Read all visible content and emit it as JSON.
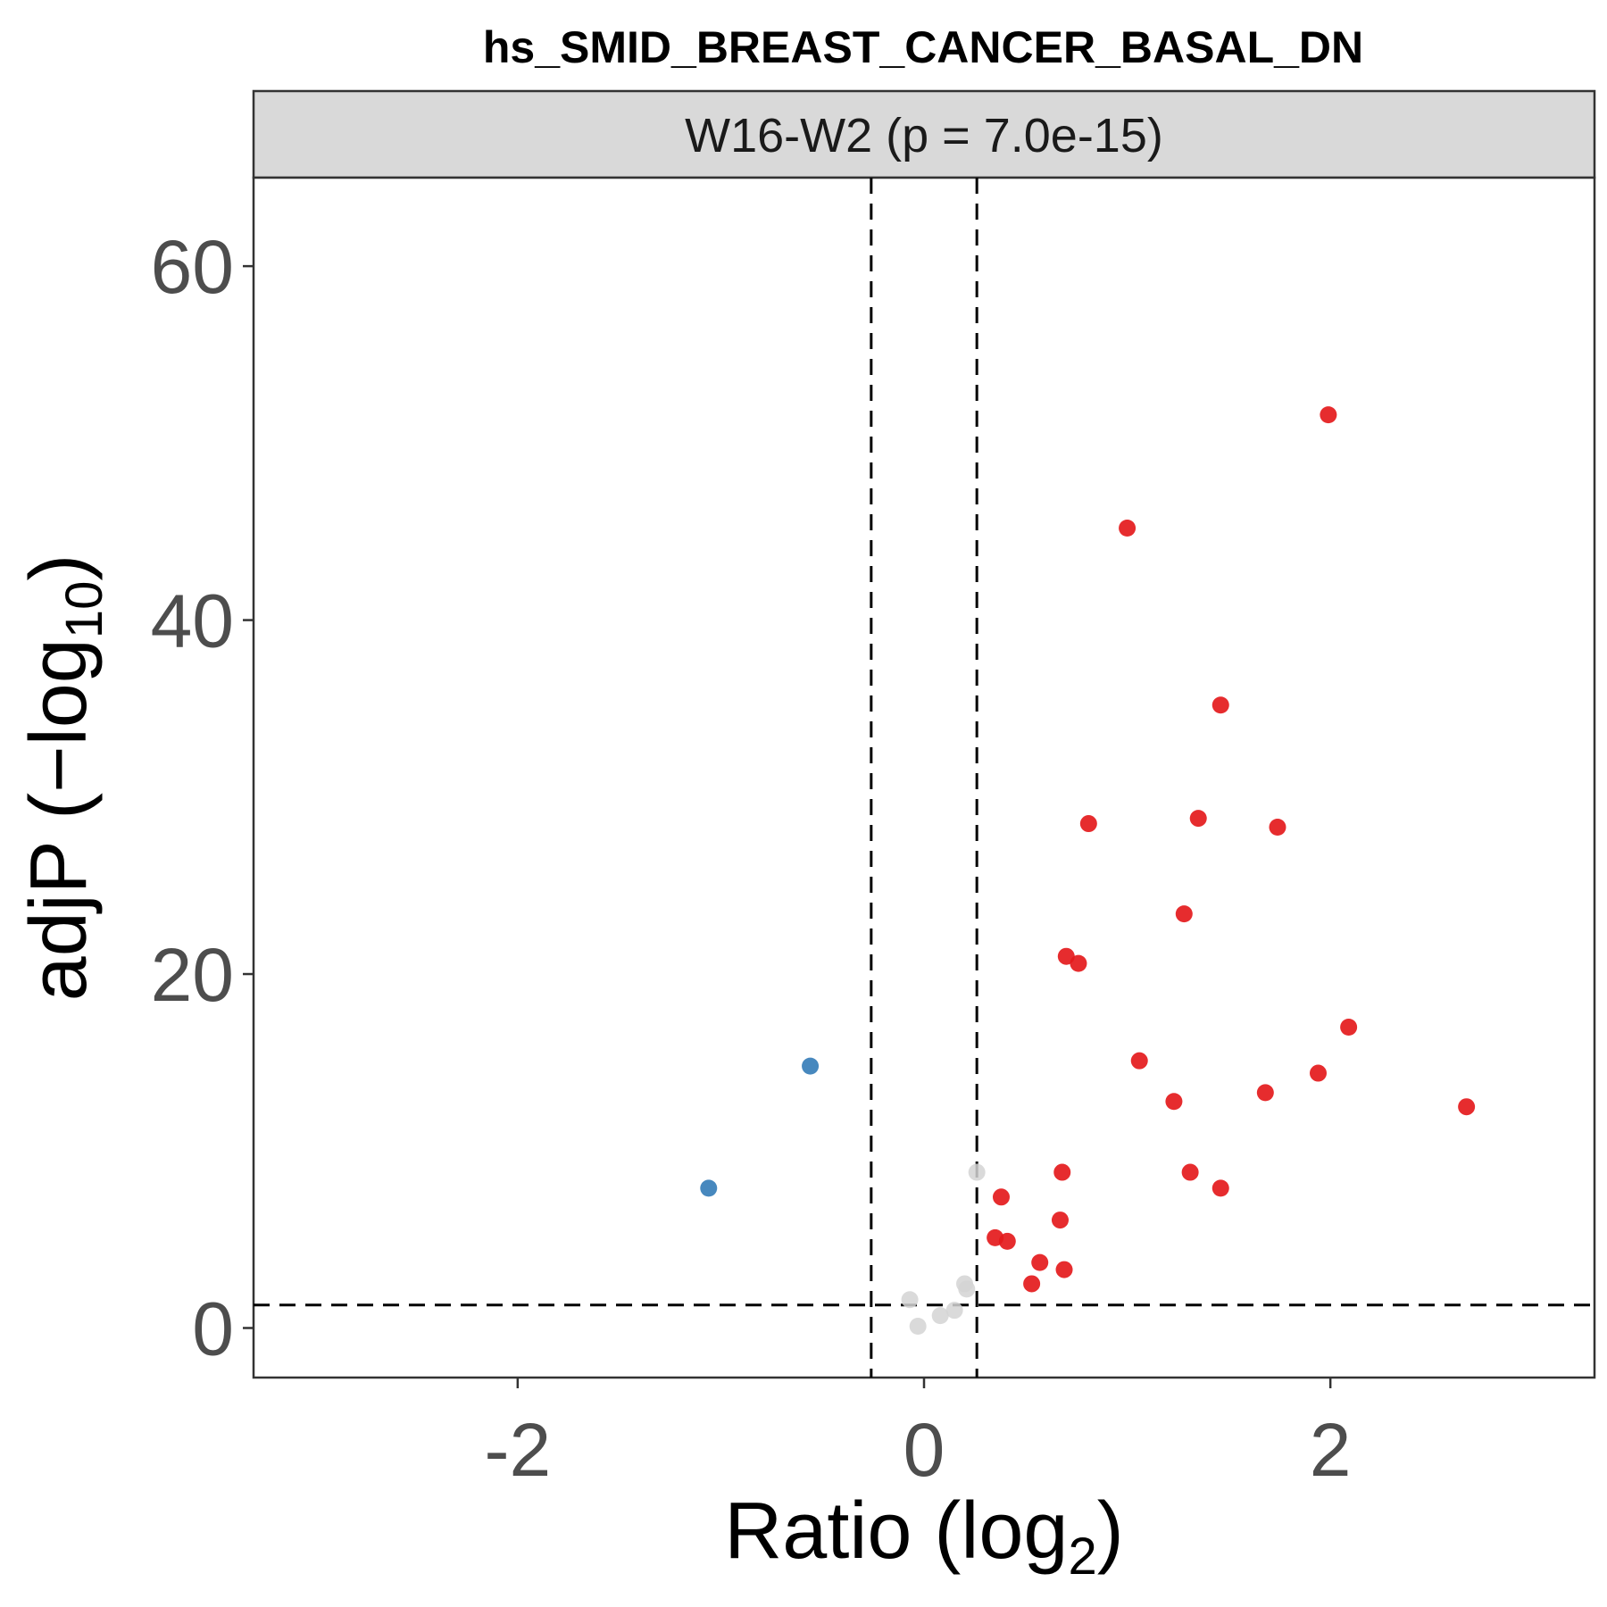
{
  "chart_data": {
    "type": "scatter",
    "title": "hs_SMID_BREAST_CANCER_BASAL_DN",
    "panel_label": "W16-W2 (p = 7.0e-15)",
    "xlabel": {
      "main": "Ratio (log",
      "sub": "2",
      "close": ")"
    },
    "ylabel": {
      "main": "adjP (−log",
      "sub": "10",
      "close": ")"
    },
    "xlim": [
      -3.3,
      3.3
    ],
    "ylim": [
      -2.8,
      65
    ],
    "x_ticks": [
      -2,
      0,
      2
    ],
    "x_tick_labels": [
      "-2",
      "0",
      "2"
    ],
    "y_ticks": [
      0,
      20,
      40,
      60
    ],
    "y_tick_labels": [
      "0",
      "20",
      "40",
      "60"
    ],
    "grid": false,
    "thresholds": {
      "x": [
        -0.26,
        0.26
      ],
      "y": 1.3
    },
    "colors": {
      "up": "#e41a1c",
      "down": "#377eb8",
      "ns": "#d3d3d3"
    },
    "series": [
      {
        "group": "up",
        "x": [
          1.99,
          1.0,
          1.46,
          0.81,
          1.35,
          1.74,
          1.28,
          0.7,
          0.76,
          2.09,
          1.06,
          1.94,
          1.23,
          1.68,
          2.67,
          0.68,
          1.31,
          1.46,
          0.38,
          0.67,
          0.35,
          0.41,
          0.57,
          0.69,
          0.53
        ],
        "y": [
          51.6,
          45.2,
          35.2,
          28.5,
          28.8,
          28.3,
          23.4,
          21.0,
          20.6,
          17.0,
          15.1,
          14.4,
          12.8,
          13.3,
          12.5,
          8.8,
          8.8,
          7.9,
          7.4,
          6.1,
          5.1,
          4.9,
          3.7,
          3.3,
          2.5
        ]
      },
      {
        "group": "down",
        "x": [
          -0.56,
          -1.06
        ],
        "y": [
          14.8,
          7.9
        ]
      },
      {
        "group": "ns",
        "x": [
          0.26,
          -0.07,
          -0.03,
          0.08,
          0.15,
          0.2,
          0.21
        ],
        "y": [
          8.8,
          1.6,
          0.1,
          0.7,
          1.0,
          2.5,
          2.2
        ]
      }
    ]
  }
}
